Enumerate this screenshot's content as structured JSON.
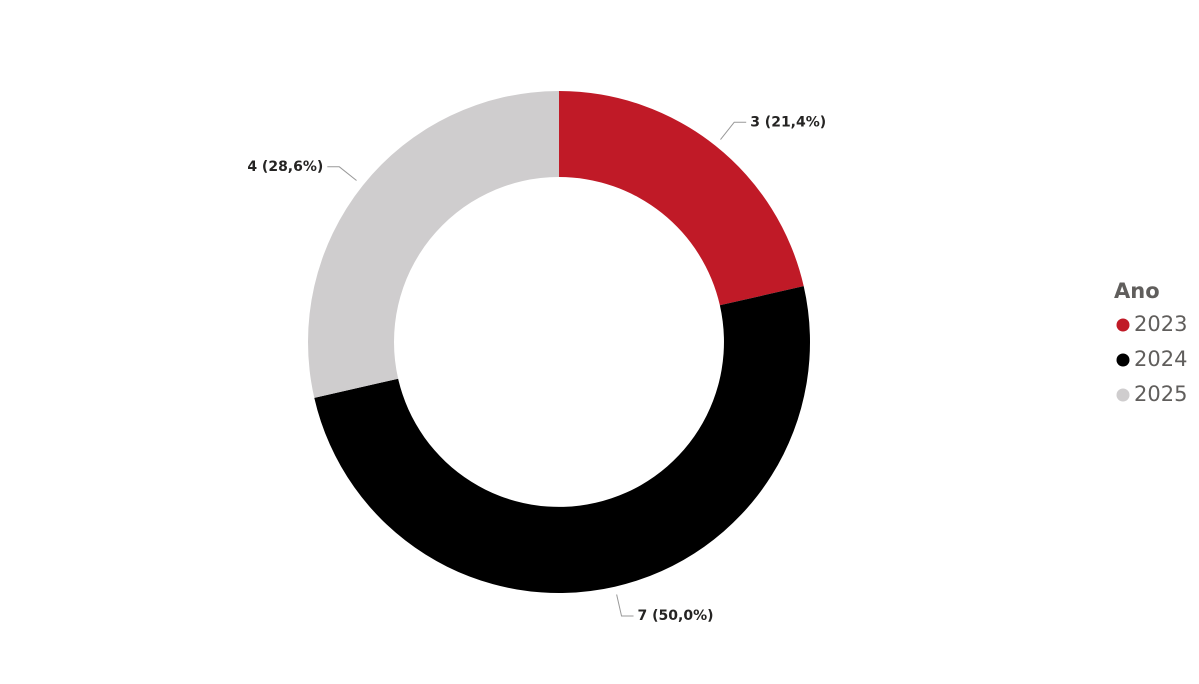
{
  "chart_data": {
    "type": "donut",
    "categories": [
      "2023",
      "2024",
      "2025"
    ],
    "values": [
      3,
      7,
      4
    ],
    "value_labels": [
      "3 (21,4%)",
      "7 (50,0%)",
      "4 (28,6%)"
    ],
    "colors": [
      "#c01a27",
      "#000000",
      "#cfcdce"
    ],
    "legend_title": "Ano",
    "legend": "right"
  }
}
